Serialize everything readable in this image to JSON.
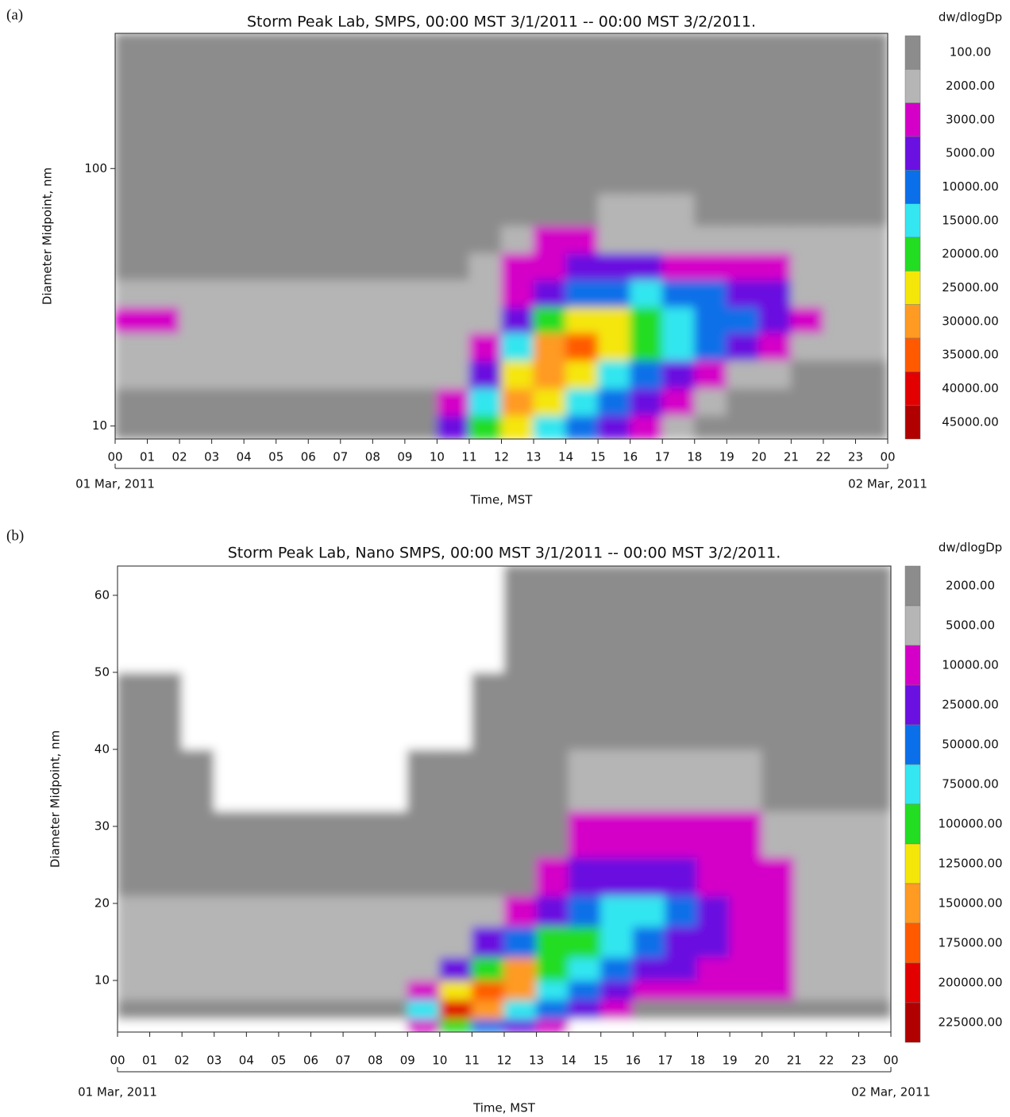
{
  "chart_data": [
    {
      "type": "contour",
      "panel_label": "(a)",
      "title": "Storm Peak Lab, SMPS, 00:00 MST 3/1/2011 -- 00:00 MST 3/2/2011.",
      "x_label": "Time, MST",
      "y_label": "Diameter Midpoint, nm",
      "colorbar_title": "dw/dlogDp",
      "levels": [
        {
          "value": 100,
          "label": "100.00"
        },
        {
          "value": 2000,
          "label": "2000.00"
        },
        {
          "value": 3000,
          "label": "3000.00"
        },
        {
          "value": 5000,
          "label": "5000.00"
        },
        {
          "value": 10000,
          "label": "10000.00"
        },
        {
          "value": 15000,
          "label": "15000.00"
        },
        {
          "value": 20000,
          "label": "20000.00"
        },
        {
          "value": 25000,
          "label": "25000.00"
        },
        {
          "value": 30000,
          "label": "30000.00"
        },
        {
          "value": 35000,
          "label": "35000.00"
        },
        {
          "value": 40000,
          "label": "40000.00"
        },
        {
          "value": 45000,
          "label": "45000.00"
        }
      ],
      "colors": [
        "#8c8c8c",
        "#b5b5b5",
        "#d400c8",
        "#6a10e0",
        "#0a6fe8",
        "#33e6f0",
        "#22dd22",
        "#f5e60a",
        "#ff9a22",
        "#ff5a00",
        "#e20000",
        "#b00000"
      ],
      "log_y": true,
      "xlim": [
        0,
        24
      ],
      "ylim": [
        8.9,
        335
      ],
      "xticks": [
        {
          "value": 0,
          "label": "00"
        },
        {
          "value": 1,
          "label": "01"
        },
        {
          "value": 2,
          "label": "02"
        },
        {
          "value": 3,
          "label": "03"
        },
        {
          "value": 4,
          "label": "04"
        },
        {
          "value": 5,
          "label": "05"
        },
        {
          "value": 6,
          "label": "06"
        },
        {
          "value": 7,
          "label": "07"
        },
        {
          "value": 8,
          "label": "08"
        },
        {
          "value": 9,
          "label": "09"
        },
        {
          "value": 10,
          "label": "10"
        },
        {
          "value": 11,
          "label": "11"
        },
        {
          "value": 12,
          "label": "12"
        },
        {
          "value": 13,
          "label": "13"
        },
        {
          "value": 14,
          "label": "14"
        },
        {
          "value": 15,
          "label": "15"
        },
        {
          "value": 16,
          "label": "16"
        },
        {
          "value": 17,
          "label": "17"
        },
        {
          "value": 18,
          "label": "18"
        },
        {
          "value": 19,
          "label": "19"
        },
        {
          "value": 20,
          "label": "20"
        },
        {
          "value": 21,
          "label": "21"
        },
        {
          "value": 22,
          "label": "22"
        },
        {
          "value": 23,
          "label": "23"
        },
        {
          "value": 24,
          "label": "00"
        }
      ],
      "yticks": [
        10,
        100
      ],
      "date_labels": [
        {
          "value": 0,
          "label": "01 Mar, 2011"
        },
        {
          "value": 24,
          "label": "02 Mar, 2011"
        }
      ],
      "x_edges": [
        0,
        1,
        2,
        3,
        4,
        5,
        6,
        7,
        8,
        9,
        10,
        11,
        12,
        13,
        14,
        15,
        16,
        17,
        18,
        19,
        20,
        21,
        22,
        23,
        24
      ],
      "y_edges": [
        8.9,
        11,
        14,
        18,
        23,
        29,
        37,
        47,
        60,
        80,
        120,
        200,
        335
      ],
      "z": [
        [
          500,
          500,
          500,
          500,
          500,
          500,
          500,
          500,
          500,
          500,
          5000,
          20000,
          25000,
          15000,
          10000,
          5000,
          3000,
          2000,
          500,
          500,
          500,
          500,
          500,
          500
        ],
        [
          500,
          500,
          500,
          500,
          500,
          500,
          500,
          500,
          500,
          500,
          3000,
          15000,
          30000,
          25000,
          15000,
          10000,
          5000,
          3000,
          2000,
          500,
          500,
          500,
          500,
          500
        ],
        [
          2000,
          2000,
          2000,
          2000,
          2000,
          2000,
          2000,
          2000,
          2000,
          2000,
          2000,
          5000,
          25000,
          30000,
          25000,
          15000,
          10000,
          5000,
          3000,
          2000,
          2000,
          500,
          500,
          500
        ],
        [
          2000,
          2000,
          2000,
          2000,
          2000,
          2000,
          2000,
          2000,
          2000,
          2000,
          2000,
          3000,
          15000,
          30000,
          35000,
          25000,
          20000,
          15000,
          10000,
          5000,
          3000,
          2000,
          2000,
          2000
        ],
        [
          3000,
          3000,
          2000,
          2000,
          2000,
          2000,
          2000,
          2000,
          2000,
          2000,
          2000,
          2000,
          5000,
          20000,
          25000,
          25000,
          20000,
          15000,
          10000,
          10000,
          5000,
          3000,
          2000,
          2000
        ],
        [
          2000,
          2000,
          2000,
          2000,
          2000,
          2000,
          2000,
          2000,
          2000,
          2000,
          2000,
          2000,
          3000,
          5000,
          10000,
          10000,
          15000,
          10000,
          10000,
          5000,
          5000,
          2000,
          2000,
          2000
        ],
        [
          500,
          500,
          500,
          500,
          500,
          500,
          500,
          500,
          500,
          500,
          500,
          2000,
          3000,
          3000,
          5000,
          5000,
          5000,
          3000,
          3000,
          3000,
          3000,
          2000,
          2000,
          2000
        ],
        [
          500,
          500,
          500,
          500,
          500,
          500,
          500,
          500,
          500,
          500,
          500,
          500,
          2000,
          3000,
          3000,
          2000,
          2000,
          2000,
          2000,
          2000,
          2000,
          2000,
          2000,
          2000
        ],
        [
          500,
          500,
          500,
          500,
          500,
          500,
          500,
          500,
          500,
          500,
          500,
          500,
          500,
          500,
          500,
          2000,
          2000,
          2000,
          500,
          500,
          500,
          500,
          500,
          500
        ],
        [
          500,
          500,
          500,
          500,
          500,
          500,
          500,
          500,
          500,
          500,
          500,
          500,
          500,
          500,
          500,
          500,
          500,
          500,
          500,
          500,
          500,
          500,
          500,
          500
        ],
        [
          500,
          500,
          500,
          500,
          500,
          500,
          500,
          500,
          500,
          500,
          500,
          500,
          500,
          500,
          500,
          500,
          500,
          500,
          500,
          500,
          500,
          500,
          500,
          500
        ],
        [
          100,
          100,
          100,
          100,
          100,
          100,
          100,
          100,
          100,
          100,
          100,
          100,
          100,
          100,
          100,
          100,
          100,
          100,
          100,
          100,
          100,
          100,
          100,
          100
        ]
      ]
    },
    {
      "type": "contour",
      "panel_label": "(b)",
      "title": "Storm Peak Lab, Nano SMPS, 00:00 MST 3/1/2011 -- 00:00 MST 3/2/2011.",
      "x_label": "Time, MST",
      "y_label": "Diameter Midpoint, nm",
      "colorbar_title": "dw/dlogDp",
      "levels": [
        {
          "value": 2000,
          "label": "2000.00"
        },
        {
          "value": 5000,
          "label": "5000.00"
        },
        {
          "value": 10000,
          "label": "10000.00"
        },
        {
          "value": 25000,
          "label": "25000.00"
        },
        {
          "value": 50000,
          "label": "50000.00"
        },
        {
          "value": 75000,
          "label": "75000.00"
        },
        {
          "value": 100000,
          "label": "100000.00"
        },
        {
          "value": 125000,
          "label": "125000.00"
        },
        {
          "value": 150000,
          "label": "150000.00"
        },
        {
          "value": 175000,
          "label": "175000.00"
        },
        {
          "value": 200000,
          "label": "200000.00"
        },
        {
          "value": 225000,
          "label": "225000.00"
        }
      ],
      "colors": [
        "#8c8c8c",
        "#b5b5b5",
        "#d400c8",
        "#6a10e0",
        "#0a6fe8",
        "#33e6f0",
        "#22dd22",
        "#f5e60a",
        "#ff9a22",
        "#ff5a00",
        "#e20000",
        "#b00000"
      ],
      "log_y": false,
      "xlim": [
        0,
        24
      ],
      "ylim": [
        3.3,
        63.8
      ],
      "xticks": [
        {
          "value": 0,
          "label": "00"
        },
        {
          "value": 1,
          "label": "01"
        },
        {
          "value": 2,
          "label": "02"
        },
        {
          "value": 3,
          "label": "03"
        },
        {
          "value": 4,
          "label": "04"
        },
        {
          "value": 5,
          "label": "05"
        },
        {
          "value": 6,
          "label": "06"
        },
        {
          "value": 7,
          "label": "07"
        },
        {
          "value": 8,
          "label": "08"
        },
        {
          "value": 9,
          "label": "09"
        },
        {
          "value": 10,
          "label": "10"
        },
        {
          "value": 11,
          "label": "11"
        },
        {
          "value": 12,
          "label": "12"
        },
        {
          "value": 13,
          "label": "13"
        },
        {
          "value": 14,
          "label": "14"
        },
        {
          "value": 15,
          "label": "15"
        },
        {
          "value": 16,
          "label": "16"
        },
        {
          "value": 17,
          "label": "17"
        },
        {
          "value": 18,
          "label": "18"
        },
        {
          "value": 19,
          "label": "19"
        },
        {
          "value": 20,
          "label": "20"
        },
        {
          "value": 21,
          "label": "21"
        },
        {
          "value": 22,
          "label": "22"
        },
        {
          "value": 23,
          "label": "23"
        },
        {
          "value": 24,
          "label": "00"
        }
      ],
      "yticks": [
        10,
        20,
        30,
        40,
        50,
        60
      ],
      "date_labels": [
        {
          "value": 0,
          "label": "01 Mar, 2011"
        },
        {
          "value": 24,
          "label": "02 Mar, 2011"
        }
      ],
      "x_edges": [
        0,
        1,
        2,
        3,
        4,
        5,
        6,
        7,
        8,
        9,
        10,
        11,
        12,
        13,
        14,
        15,
        16,
        17,
        18,
        19,
        20,
        21,
        22,
        23,
        24
      ],
      "y_edges": [
        3.3,
        5,
        7.5,
        10,
        13,
        17,
        21,
        26,
        32,
        40,
        50,
        63.8
      ],
      "z": [
        [
          0,
          0,
          0,
          0,
          0,
          0,
          0,
          0,
          0,
          10000,
          100000,
          50000,
          25000,
          10000,
          0,
          0,
          0,
          0,
          0,
          0,
          0,
          0,
          0,
          0
        ],
        [
          2000,
          2000,
          2000,
          2000,
          2000,
          2000,
          2000,
          2000,
          2000,
          75000,
          200000,
          150000,
          75000,
          50000,
          25000,
          10000,
          2000,
          2000,
          2000,
          2000,
          2000,
          2000,
          2000,
          2000
        ],
        [
          5000,
          5000,
          5000,
          5000,
          5000,
          5000,
          5000,
          5000,
          5000,
          10000,
          125000,
          175000,
          150000,
          75000,
          50000,
          25000,
          10000,
          10000,
          10000,
          10000,
          10000,
          5000,
          5000,
          5000
        ],
        [
          5000,
          5000,
          5000,
          5000,
          5000,
          5000,
          5000,
          5000,
          5000,
          5000,
          25000,
          100000,
          150000,
          100000,
          75000,
          50000,
          25000,
          25000,
          10000,
          10000,
          10000,
          5000,
          5000,
          5000
        ],
        [
          5000,
          5000,
          5000,
          5000,
          5000,
          5000,
          5000,
          5000,
          5000,
          5000,
          5000,
          25000,
          50000,
          100000,
          100000,
          75000,
          50000,
          25000,
          25000,
          10000,
          10000,
          5000,
          5000,
          5000
        ],
        [
          5000,
          5000,
          5000,
          5000,
          5000,
          5000,
          5000,
          5000,
          5000,
          5000,
          5000,
          5000,
          10000,
          25000,
          50000,
          75000,
          75000,
          50000,
          25000,
          10000,
          10000,
          5000,
          5000,
          5000
        ],
        [
          2000,
          2000,
          2000,
          2000,
          2000,
          2000,
          2000,
          2000,
          2000,
          2000,
          2000,
          2000,
          2000,
          10000,
          25000,
          25000,
          25000,
          25000,
          10000,
          10000,
          10000,
          5000,
          5000,
          5000
        ],
        [
          2000,
          2000,
          2000,
          2000,
          2000,
          2000,
          2000,
          2000,
          2000,
          2000,
          2000,
          2000,
          2000,
          2000,
          10000,
          10000,
          10000,
          10000,
          10000,
          10000,
          5000,
          5000,
          5000,
          5000
        ],
        [
          2000,
          2000,
          2000,
          0,
          0,
          0,
          0,
          0,
          0,
          2000,
          2000,
          2000,
          2000,
          2000,
          5000,
          5000,
          5000,
          5000,
          5000,
          5000,
          2000,
          2000,
          2000,
          2000
        ],
        [
          2000,
          2000,
          0,
          0,
          0,
          0,
          0,
          0,
          0,
          0,
          0,
          2000,
          2000,
          2000,
          2000,
          2000,
          2000,
          2000,
          2000,
          2000,
          2000,
          2000,
          2000,
          2000
        ],
        [
          0,
          0,
          0,
          0,
          0,
          0,
          0,
          0,
          0,
          0,
          0,
          0,
          2000,
          2000,
          2000,
          2000,
          2000,
          2000,
          2000,
          2000,
          2000,
          2000,
          2000,
          2000
        ]
      ]
    }
  ]
}
